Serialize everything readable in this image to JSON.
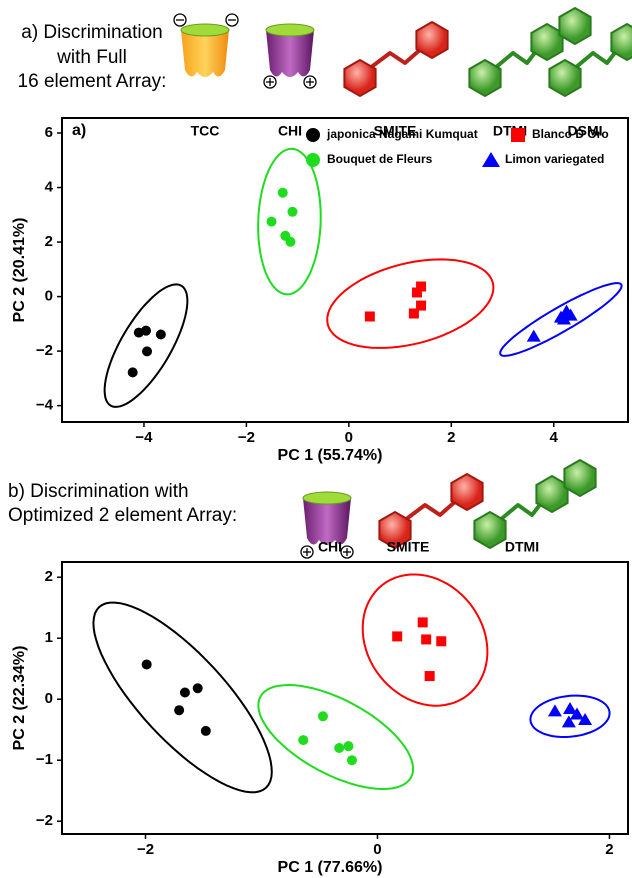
{
  "chart_data": [
    {
      "type": "scatter",
      "heading_lines": [
        "a) Discrimination",
        "with Full",
        "16 element Array:"
      ],
      "compound_labels": [
        "TCC",
        "CHI",
        "SMITE",
        "DTMI",
        "DSMI"
      ],
      "panel_label": "a)",
      "xlabel": "PC 1 (55.74%)",
      "ylabel": "PC 2 (20.41%)",
      "xlim": [
        -5.6,
        5.45
      ],
      "ylim": [
        -4.6,
        6.55
      ],
      "xticks": [
        {
          "value": -4,
          "label": "−4"
        },
        {
          "value": -2,
          "label": "−2"
        },
        0,
        2,
        4
      ],
      "yticks": [
        {
          "value": -4,
          "label": "−4"
        },
        {
          "value": -2,
          "label": "−2"
        },
        0,
        2,
        4,
        6
      ],
      "legend": "upper right",
      "series": [
        {
          "name": "japonica Nagami Kumquat",
          "color": "#000000",
          "marker": "circle",
          "x": [
            -4.1,
            -3.96,
            -3.67,
            -3.94,
            -4.22
          ],
          "y": [
            -1.32,
            -1.25,
            -1.39,
            -2.01,
            -2.78
          ],
          "ellipse": {
            "center": [
              -3.96,
              -1.8
            ],
            "axis1": [
              0.69,
              2.2
            ],
            "axis2": [
              0.42,
              -0.46
            ]
          }
        },
        {
          "name": "Blanco D Oro",
          "color": "#ff0000",
          "marker": "square",
          "x": [
            0.41,
            1.41,
            1.33,
            1.41,
            1.27
          ],
          "y": [
            -0.73,
            0.37,
            0.15,
            -0.33,
            -0.62
          ],
          "ellipse": {
            "center": [
              1.2,
              -0.26
            ],
            "axis1": [
              1.61,
              0.77
            ],
            "axis2": [
              0.2,
              -1.43
            ]
          }
        },
        {
          "name": "Bouquet de Fleurs",
          "color": "#1fdc1f",
          "marker": "circle",
          "x": [
            -1.29,
            -1.1,
            -1.51,
            -1.24,
            -1.14
          ],
          "y": [
            3.81,
            3.11,
            2.75,
            2.23,
            2.01
          ],
          "ellipse": {
            "center": [
              -1.16,
              2.75
            ],
            "axis1": [
              0.04,
              2.67
            ],
            "axis2": [
              0.61,
              0
            ]
          }
        },
        {
          "name": "Limon variegated",
          "color": "#0000ff",
          "marker": "triangle",
          "x": [
            3.61,
            4.14,
            4.25,
            4.33,
            4.2
          ],
          "y": [
            -1.47,
            -0.77,
            -0.55,
            -0.7,
            -0.84
          ],
          "ellipse": {
            "center": [
              4.14,
              -0.84
            ],
            "axis1": [
              1.18,
              1.28
            ],
            "axis2": [
              0.12,
              -0.38
            ]
          }
        }
      ]
    },
    {
      "type": "scatter",
      "heading_lines": [
        "b) Discrimination with",
        "Optimized 2 element Array:"
      ],
      "compound_labels": [
        "CHI",
        "SMITE",
        "DTMI"
      ],
      "xlabel": "PC 1 (77.66%)",
      "ylabel": "PC 2 (22.34%)",
      "xlim": [
        -2.72,
        2.16
      ],
      "ylim": [
        -2.21,
        2.25
      ],
      "xticks": [
        {
          "value": -2,
          "label": "−2"
        },
        0,
        2
      ],
      "yticks": [
        {
          "value": -2,
          "label": "−2"
        },
        {
          "value": -1,
          "label": "−1"
        },
        0,
        1,
        2
      ],
      "series": [
        {
          "color": "#000000",
          "marker": "circle",
          "x": [
            -1.99,
            -1.66,
            -1.55,
            -1.71,
            -1.48
          ],
          "y": [
            0.57,
            0.11,
            0.18,
            -0.18,
            -0.52
          ],
          "ellipse": {
            "center": [
              -1.68,
              0.03
            ],
            "axis1": [
              0.72,
              -1.48
            ],
            "axis2": [
              0.27,
              0.48
            ]
          }
        },
        {
          "color": "#ff0000",
          "marker": "square",
          "x": [
            0.17,
            0.39,
            0.42,
            0.55,
            0.45
          ],
          "y": [
            1.03,
            1.26,
            0.98,
            0.95,
            0.38
          ],
          "ellipse": {
            "center": [
              0.41,
              0.97
            ],
            "axis1": [
              0.37,
              -0.9
            ],
            "axis2": [
              0.39,
              0.59
            ]
          }
        },
        {
          "color": "#1fdc1f",
          "marker": "circle",
          "x": [
            -0.64,
            -0.47,
            -0.33,
            -0.25,
            -0.22
          ],
          "y": [
            -0.67,
            -0.28,
            -0.8,
            -0.77,
            -1.0
          ],
          "ellipse": {
            "center": [
              -0.36,
              -0.62
            ],
            "axis1": [
              0.65,
              -0.66
            ],
            "axis2": [
              -0.15,
              -0.54
            ]
          }
        },
        {
          "color": "#0000ff",
          "marker": "triangle",
          "x": [
            1.53,
            1.66,
            1.72,
            1.65,
            1.79
          ],
          "y": [
            -0.2,
            -0.16,
            -0.25,
            -0.38,
            -0.34
          ],
          "ellipse": {
            "center": [
              1.66,
              -0.28
            ],
            "axis1": [
              0.34,
              0.08
            ],
            "axis2": [
              0.03,
              -0.33
            ]
          }
        }
      ]
    }
  ]
}
